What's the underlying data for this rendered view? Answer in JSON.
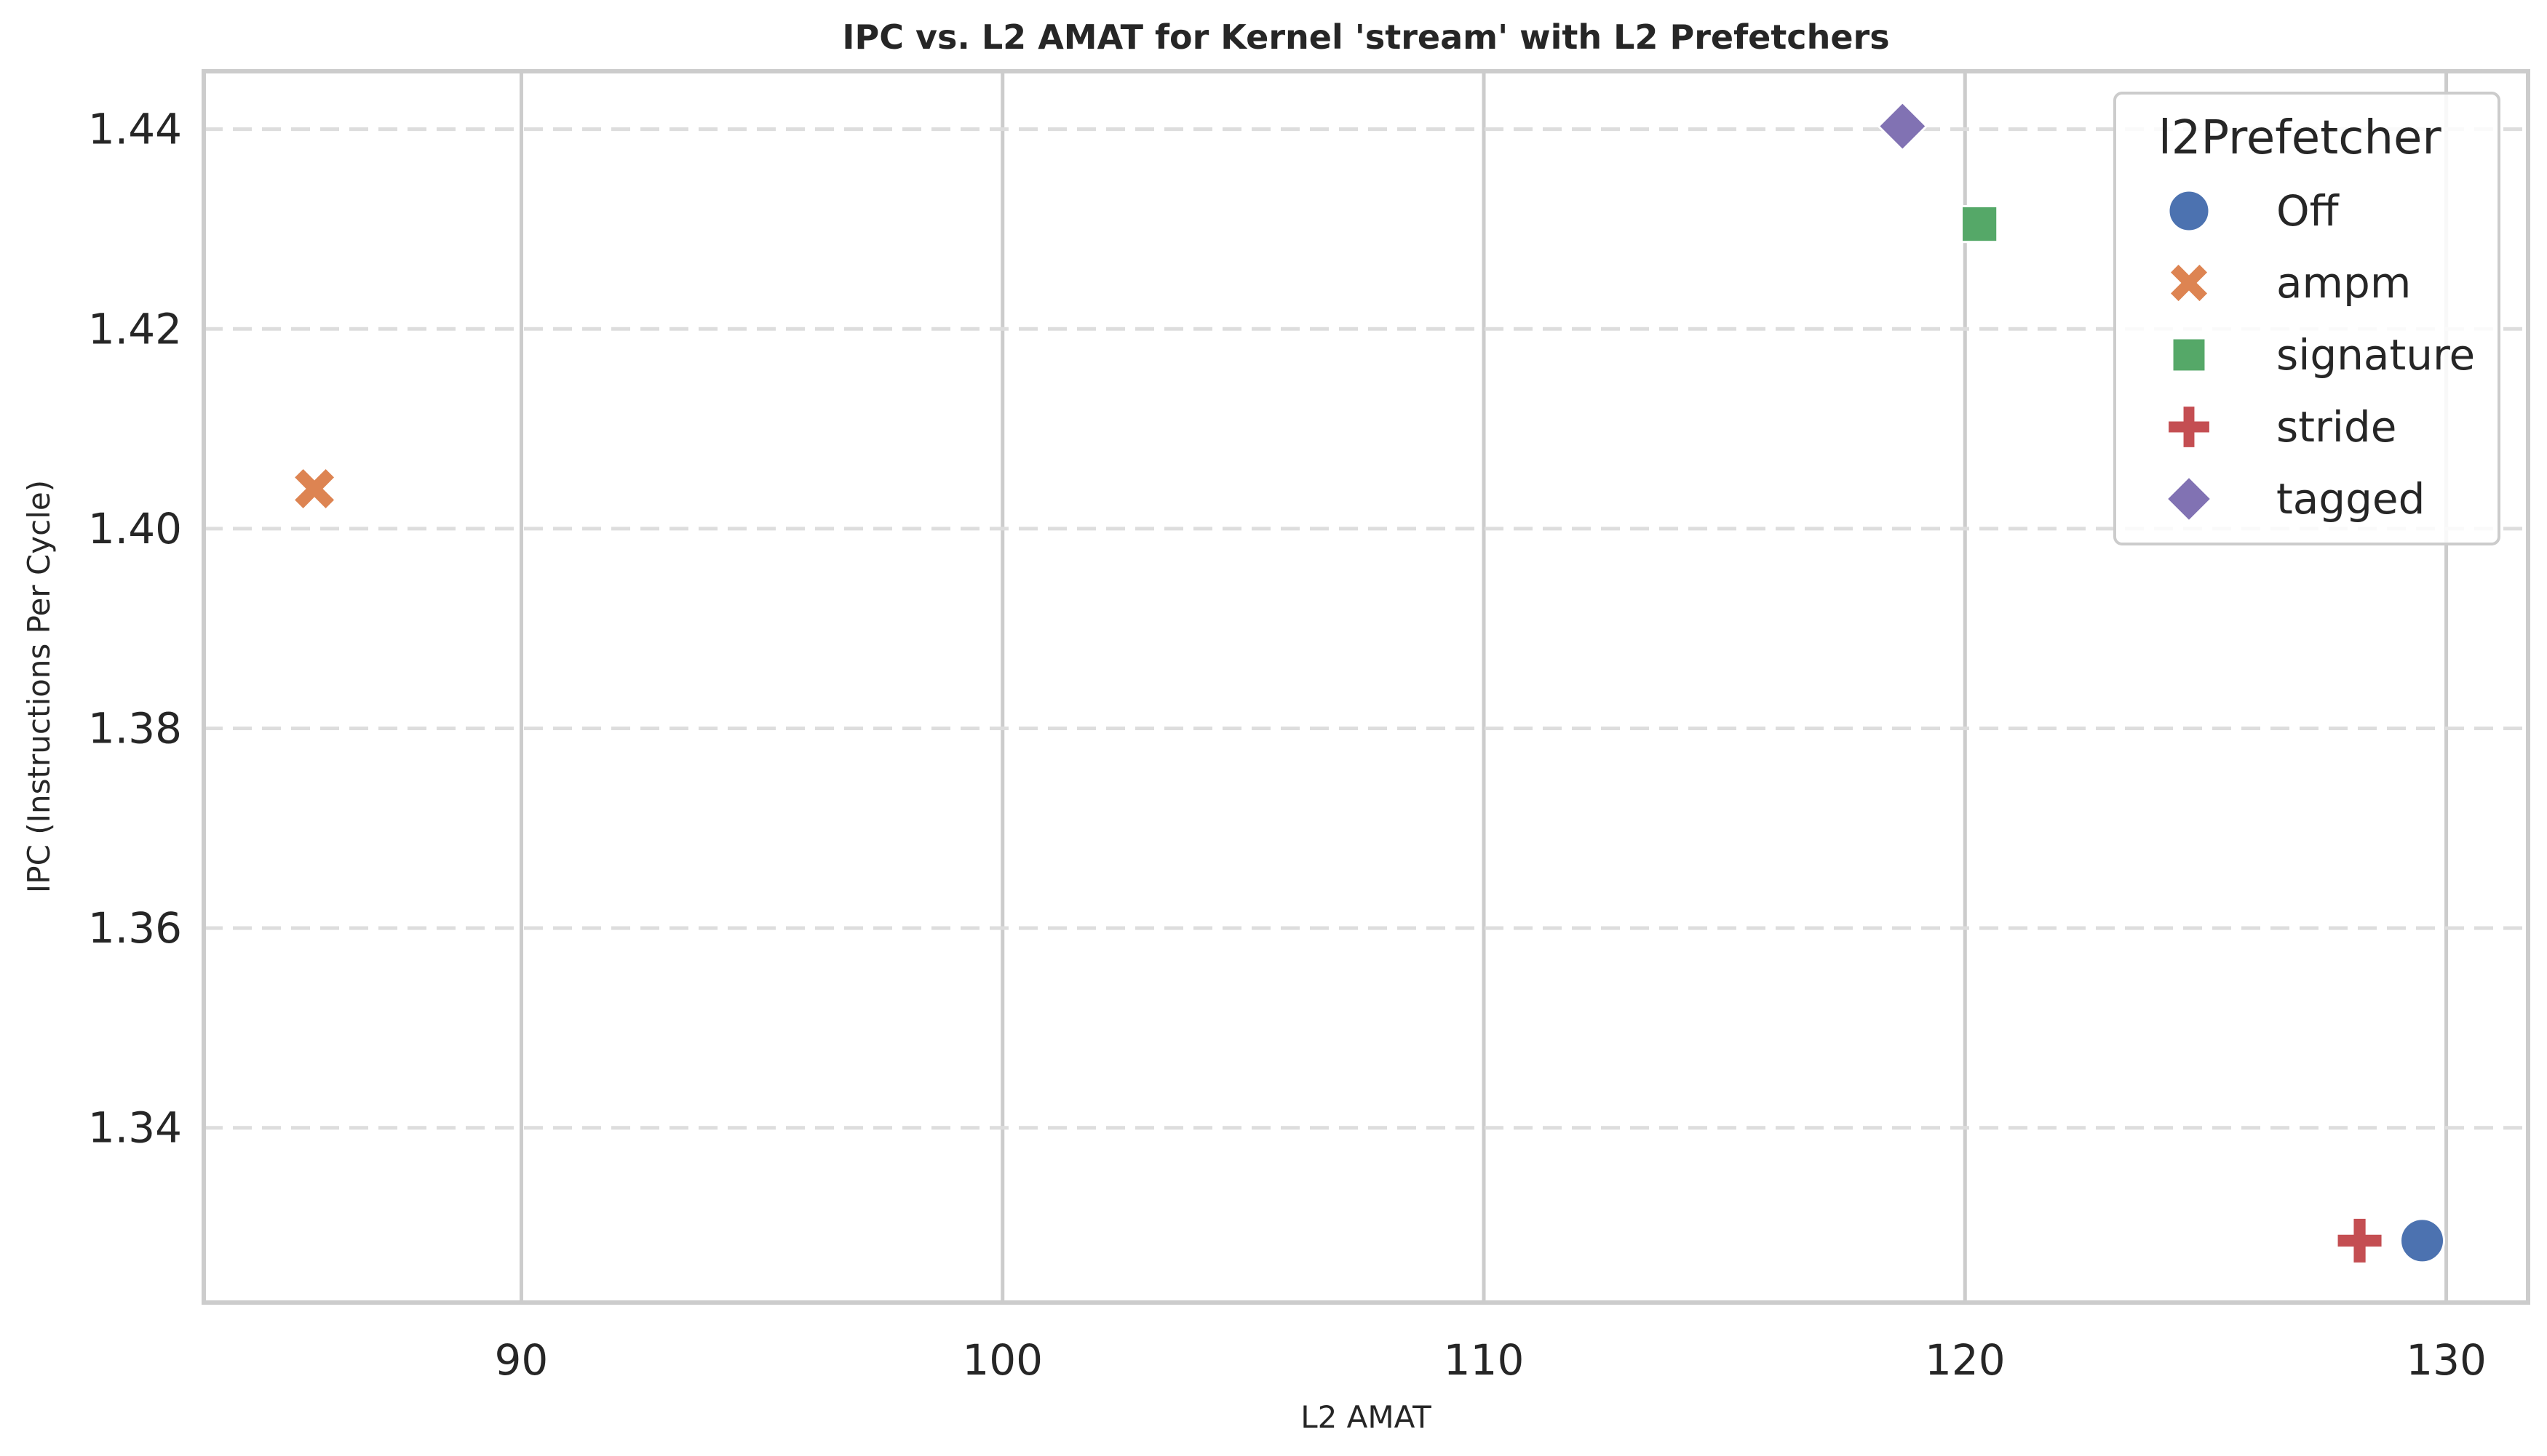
{
  "chart_data": {
    "type": "scatter",
    "title": "IPC vs. L2 AMAT for Kernel 'stream' with L2 Prefetchers",
    "xlabel": "L2 AMAT",
    "ylabel": "IPC (Instructions Per Cycle)",
    "xlim": [
      83.4,
      131.7
    ],
    "ylim": [
      1.3225,
      1.4458
    ],
    "xticks": [
      90,
      100,
      110,
      120,
      130
    ],
    "yticks": [
      1.34,
      1.36,
      1.38,
      1.4,
      1.42,
      1.44
    ],
    "xtick_labels": [
      "90",
      "100",
      "110",
      "120",
      "130"
    ],
    "ytick_labels": [
      "1.34",
      "1.36",
      "1.38",
      "1.40",
      "1.42",
      "1.44"
    ],
    "grid": {
      "x": "solid",
      "y": "dashed"
    },
    "legend": {
      "title": "l2Prefetcher",
      "placement": "top-right"
    },
    "series": [
      {
        "name": "Off",
        "marker": "circle",
        "color": "#4c72b0",
        "x": [
          129.5
        ],
        "y": [
          1.3287
        ]
      },
      {
        "name": "ampm",
        "marker": "x",
        "color": "#dd8452",
        "x": [
          85.7
        ],
        "y": [
          1.404
        ]
      },
      {
        "name": "signature",
        "marker": "square",
        "color": "#55a868",
        "x": [
          120.3
        ],
        "y": [
          1.4305
        ]
      },
      {
        "name": "stride",
        "marker": "plus",
        "color": "#c44e52",
        "x": [
          128.2
        ],
        "y": [
          1.3287
        ]
      },
      {
        "name": "tagged",
        "marker": "diamond",
        "color": "#8172b3",
        "x": [
          118.7
        ],
        "y": [
          1.4403
        ]
      }
    ]
  }
}
